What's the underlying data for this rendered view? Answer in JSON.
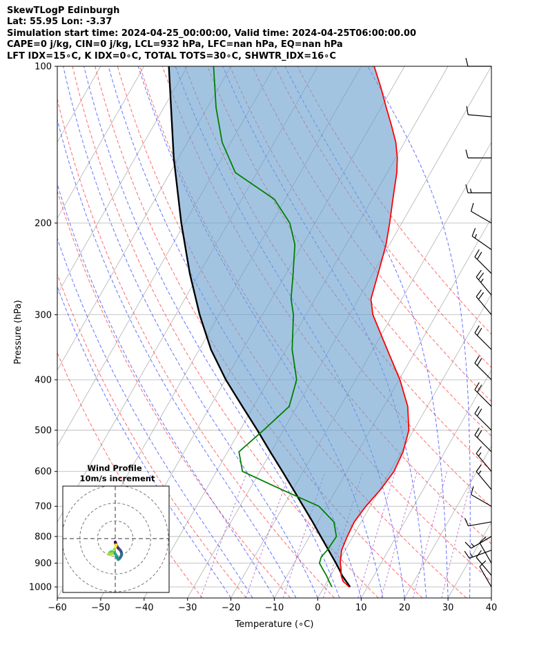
{
  "figure": {
    "title_lines": [
      "SkewTLogP Edinburgh",
      "Lat: 55.95   Lon: -3.37",
      "Simulation start time: 2024-04-25_00:00:00, Valid time: 2024-04-25T06:00:00.00",
      "CAPE=0 j/kg, CIN=0 j/kg, LCL=932 hPa, LFC=nan hPa, EQ=nan hPa",
      "LFT IDX=15∘C, K IDX=0∘C, TOTAL TOTS=30∘C, SHWTR_IDX=16∘C"
    ]
  },
  "chart_data": [
    {
      "type": "line",
      "name": "skew-t",
      "xlabel": "Temperature (∘C)",
      "ylabel": "Pressure (hPa)",
      "xlim": [
        -60,
        40
      ],
      "ylim": [
        1050,
        100
      ],
      "y_scale": "log",
      "xticks": [
        -60,
        -50,
        -40,
        -30,
        -20,
        -10,
        0,
        10,
        20,
        30,
        40
      ],
      "yticks": [
        1000,
        900,
        800,
        700,
        600,
        500,
        400,
        300,
        200,
        100
      ],
      "skew_isotherm_temps": [
        -160,
        -150,
        -140,
        -130,
        -120,
        -110,
        -100,
        -90,
        -80,
        -70,
        -60,
        -50,
        -40,
        -30,
        -20,
        -10,
        0,
        10,
        20,
        30,
        40
      ],
      "dry_adiabat_thetas_C": [
        -30,
        -20,
        -10,
        0,
        10,
        20,
        30,
        40,
        50,
        60,
        70,
        80,
        90,
        100,
        110
      ],
      "moist_adiabat_start_temps_C": [
        -20,
        -15,
        -10,
        -5,
        0,
        5,
        10,
        15,
        20,
        25,
        30,
        35
      ],
      "mixing_ratio_lines_gkg": [
        0.4,
        1,
        2,
        4,
        7,
        10,
        16,
        24
      ],
      "series": [
        {
          "name": "temperature",
          "color": "#ff0000",
          "p": [
            1000,
            975,
            950,
            925,
            900,
            850,
            800,
            750,
            700,
            650,
            600,
            550,
            500,
            450,
            400,
            350,
            300,
            280,
            250,
            220,
            200,
            180,
            160,
            150,
            140,
            130,
            120,
            110,
            100
          ],
          "t": [
            5.8,
            3.6,
            2.4,
            1.6,
            0.6,
            -0.8,
            -1.3,
            -1.6,
            -1.0,
            0.2,
            0.9,
            0.4,
            -1.1,
            -4.5,
            -9.8,
            -16.7,
            -24.6,
            -27.1,
            -28.8,
            -30.8,
            -32.8,
            -35.2,
            -37.8,
            -39.6,
            -42.0,
            -45.2,
            -48.8,
            -52.6,
            -57.0
          ]
        },
        {
          "name": "dewpoint",
          "color": "#008000",
          "p": [
            1000,
            975,
            950,
            925,
            900,
            875,
            850,
            800,
            750,
            700,
            650,
            600,
            550,
            500,
            450,
            400,
            350,
            300,
            280,
            250,
            220,
            200,
            180,
            160,
            140,
            120,
            100
          ],
          "t": [
            1.8,
            0.4,
            -1.0,
            -2.6,
            -4.2,
            -4.6,
            -4.1,
            -3.8,
            -6.3,
            -11.8,
            -22.6,
            -34.0,
            -37.4,
            -34.6,
            -31.8,
            -33.6,
            -38.6,
            -42.9,
            -45.5,
            -48.4,
            -51.8,
            -55.8,
            -62.5,
            -75.0,
            -82.0,
            -88.0,
            -94.0
          ]
        },
        {
          "name": "parcel",
          "color": "#000000",
          "p": [
            1000,
            950,
            932,
            900,
            850,
            800,
            750,
            700,
            650,
            600,
            550,
            500,
            450,
            400,
            350,
            300,
            250,
            200,
            150,
            100
          ],
          "t": [
            6.0,
            2.6,
            1.6,
            -0.4,
            -3.8,
            -7.4,
            -11.2,
            -15.4,
            -19.9,
            -24.8,
            -30.2,
            -36.0,
            -42.6,
            -49.9,
            -57.3,
            -64.5,
            -72.2,
            -80.8,
            -91.1,
            -104.3
          ]
        }
      ],
      "shaded_area": "between temperature and parcel",
      "wind_barbs": [
        {
          "p": 100,
          "speed_kt": 12,
          "dir_deg": 270
        },
        {
          "p": 125,
          "speed_kt": 10,
          "dir_deg": 275
        },
        {
          "p": 150,
          "speed_kt": 10,
          "dir_deg": 270
        },
        {
          "p": 175,
          "speed_kt": 15,
          "dir_deg": 270
        },
        {
          "p": 200,
          "speed_kt": 10,
          "dir_deg": 300
        },
        {
          "p": 225,
          "speed_kt": 15,
          "dir_deg": 305
        },
        {
          "p": 250,
          "speed_kt": 20,
          "dir_deg": 315
        },
        {
          "p": 275,
          "speed_kt": 25,
          "dir_deg": 320
        },
        {
          "p": 300,
          "speed_kt": 20,
          "dir_deg": 320
        },
        {
          "p": 350,
          "speed_kt": 20,
          "dir_deg": 315
        },
        {
          "p": 400,
          "speed_kt": 20,
          "dir_deg": 315
        },
        {
          "p": 450,
          "speed_kt": 20,
          "dir_deg": 315
        },
        {
          "p": 500,
          "speed_kt": 20,
          "dir_deg": 315
        },
        {
          "p": 550,
          "speed_kt": 20,
          "dir_deg": 315
        },
        {
          "p": 600,
          "speed_kt": 15,
          "dir_deg": 320
        },
        {
          "p": 650,
          "speed_kt": 15,
          "dir_deg": 320
        },
        {
          "p": 700,
          "speed_kt": 10,
          "dir_deg": 300
        },
        {
          "p": 750,
          "speed_kt": 10,
          "dir_deg": 260
        },
        {
          "p": 800,
          "speed_kt": 15,
          "dir_deg": 240
        },
        {
          "p": 850,
          "speed_kt": 15,
          "dir_deg": 250
        },
        {
          "p": 900,
          "speed_kt": 10,
          "dir_deg": 330
        },
        {
          "p": 950,
          "speed_kt": 10,
          "dir_deg": 320
        },
        {
          "p": 1000,
          "speed_kt": 10,
          "dir_deg": 330
        }
      ]
    },
    {
      "type": "scatter",
      "name": "hodograph",
      "title": "Wind Profile",
      "subtitle": "10m/s increment",
      "ring_speeds_ms": [
        10,
        20,
        30
      ],
      "lim_ms": [
        -30,
        30
      ],
      "u": [
        0.0,
        0.3,
        0.6,
        1.0,
        1.5,
        2.1,
        2.7,
        3.2,
        3.5,
        3.6,
        3.4,
        3.0,
        2.4,
        1.7,
        1.2,
        0.8,
        0.4,
        0.0,
        -0.5,
        -1.0,
        -1.6,
        -2.4,
        -3.2,
        -3.5,
        -3.0,
        -1.8,
        -0.5,
        0.2,
        0.5
      ],
      "v": [
        -2.0,
        -2.8,
        -3.6,
        -4.4,
        -5.2,
        -5.8,
        -6.4,
        -7.2,
        -8.0,
        -8.8,
        -9.6,
        -10.4,
        -11.2,
        -11.8,
        -11.0,
        -10.0,
        -9.2,
        -8.6,
        -8.2,
        -7.8,
        -7.4,
        -7.4,
        -8.0,
        -8.6,
        -9.0,
        -8.4,
        -6.0,
        -4.4,
        -3.6
      ],
      "colormap": "viridis"
    }
  ]
}
